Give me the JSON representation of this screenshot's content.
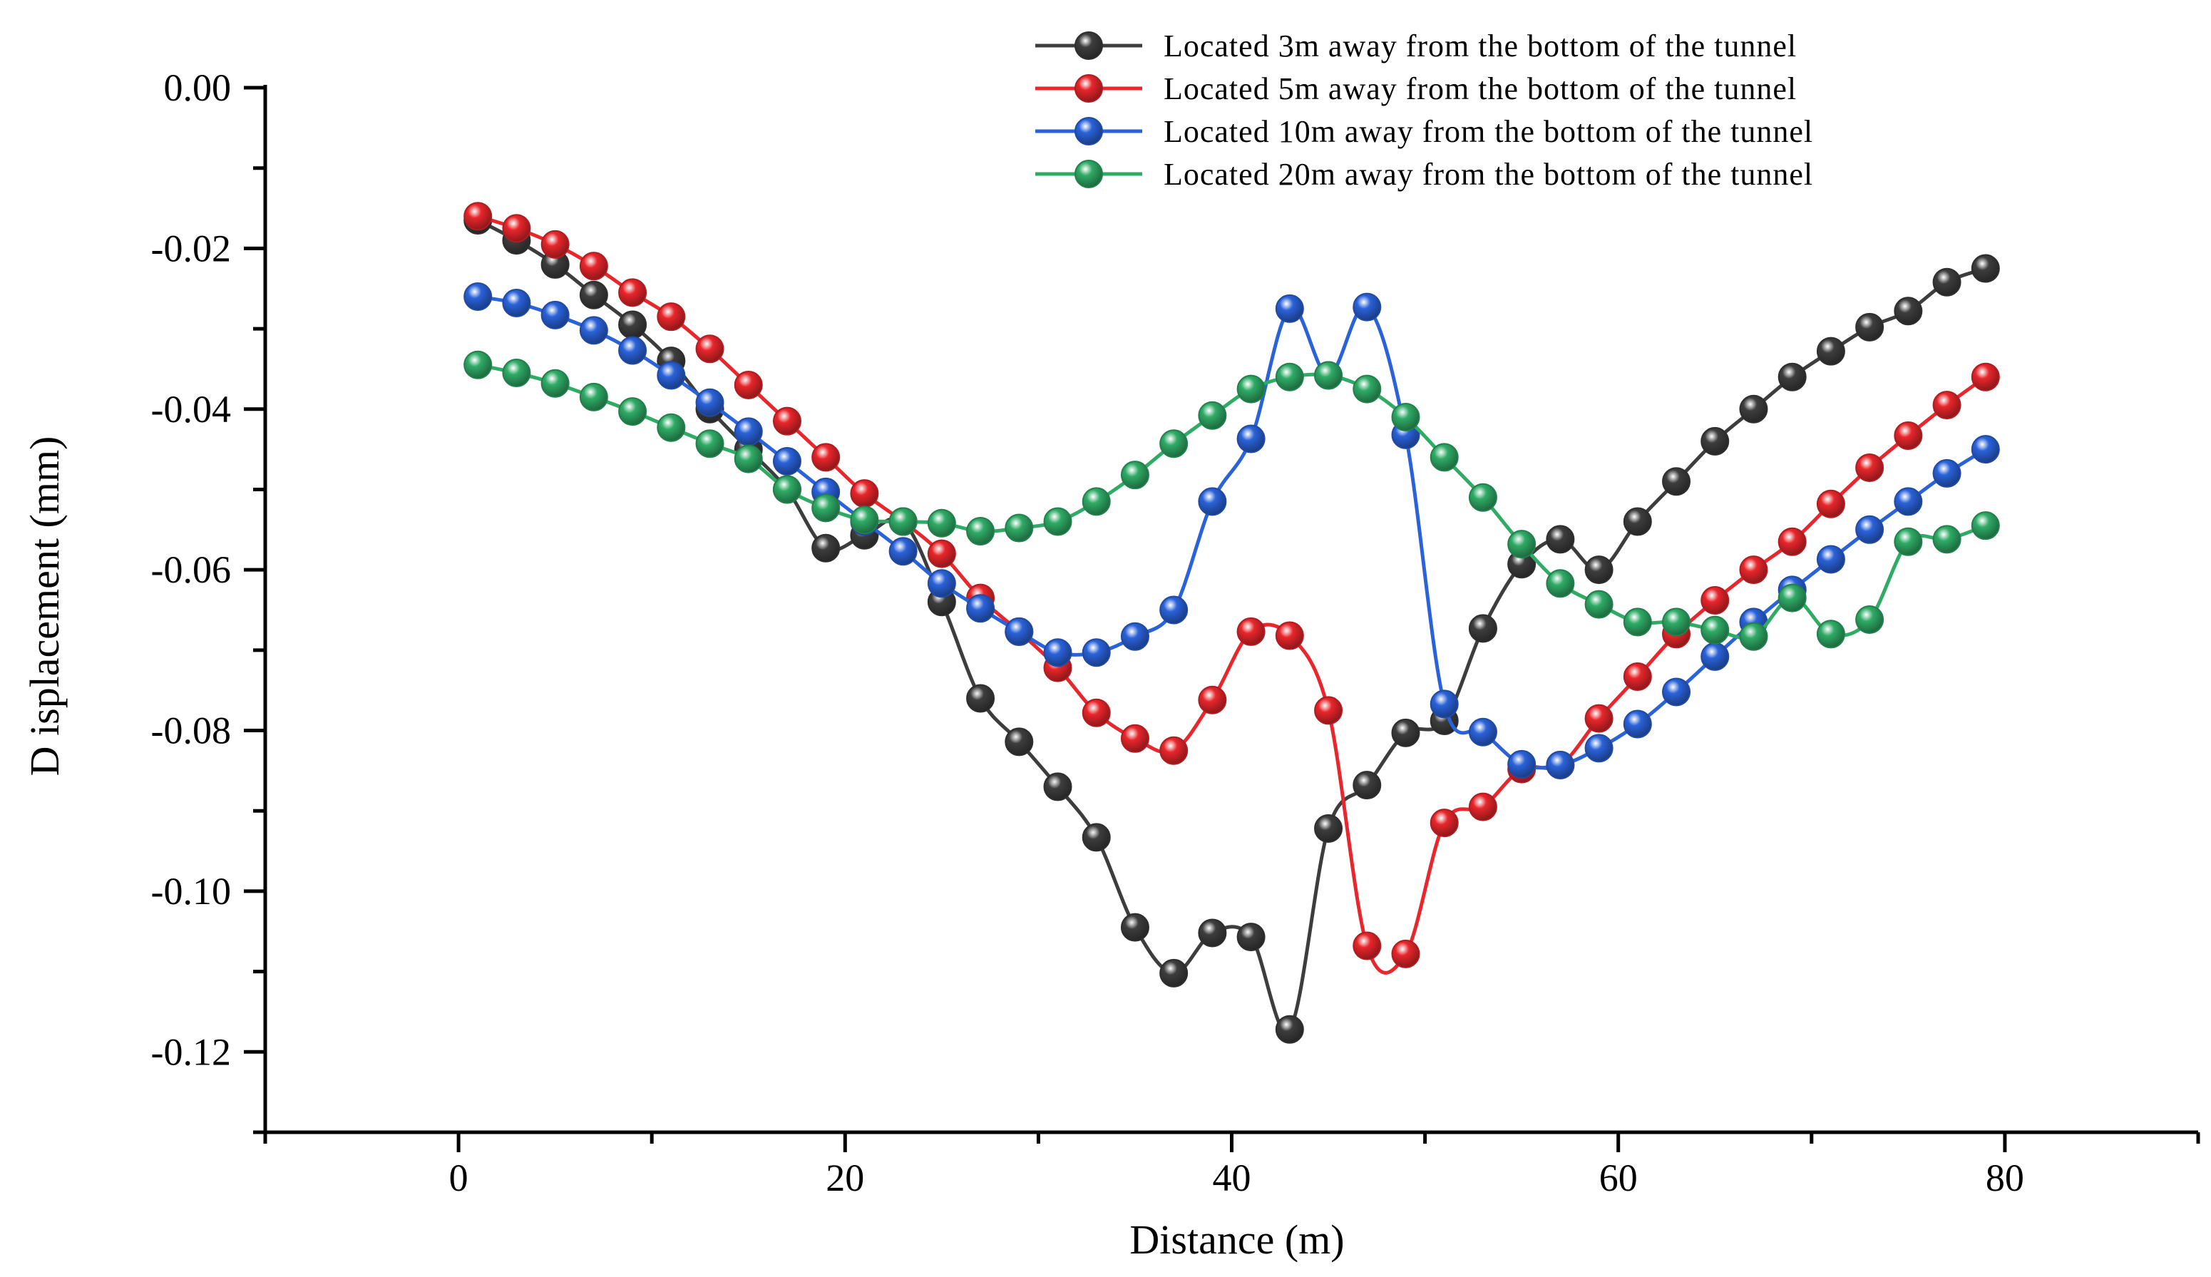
{
  "chart_data": {
    "type": "line",
    "title": "",
    "xlabel": "Distance (m)",
    "ylabel": "D isplacement (mm)",
    "xlim": [
      -10,
      90
    ],
    "ylim": [
      -0.13,
      0.0
    ],
    "xticks": [
      0,
      20,
      40,
      60,
      80
    ],
    "xtick_labels": [
      "0",
      "20",
      "40",
      "60",
      "80"
    ],
    "yticks": [
      0.0,
      -0.02,
      -0.04,
      -0.06,
      -0.08,
      -0.1,
      -0.12
    ],
    "ytick_labels": [
      "0.00",
      "-0.02",
      "-0.04",
      "-0.06",
      "-0.08",
      "-0.10",
      "-0.12"
    ],
    "grid": false,
    "legend_position": "top-right",
    "x": [
      1,
      3,
      5,
      7,
      9,
      11,
      13,
      15,
      17,
      19,
      21,
      23,
      25,
      27,
      29,
      31,
      33,
      35,
      37,
      39,
      41,
      43,
      45,
      47,
      49,
      51,
      53,
      55,
      57,
      59,
      61,
      63,
      65,
      67,
      69,
      71,
      73,
      75,
      77,
      79
    ],
    "series": [
      {
        "name": "Located 3m away from the bottom of the tunnel",
        "color": "#3d3d3d",
        "values": [
          -0.0165,
          -0.019,
          -0.022,
          -0.0258,
          -0.0295,
          -0.034,
          -0.04,
          -0.045,
          -0.05,
          -0.0573,
          -0.0557,
          -0.054,
          -0.064,
          -0.076,
          -0.0814,
          -0.087,
          -0.0933,
          -0.1045,
          -0.1102,
          -0.1052,
          -0.1057,
          -0.1172,
          -0.0922,
          -0.0868,
          -0.0803,
          -0.0788,
          -0.0673,
          -0.0593,
          -0.0562,
          -0.06,
          -0.054,
          -0.049,
          -0.044,
          -0.04,
          -0.036,
          -0.0328,
          -0.0298,
          -0.0278,
          -0.0242,
          -0.0225
        ]
      },
      {
        "name": "Located 5m away from the bottom of the tunnel",
        "color": "#e8262b",
        "values": [
          -0.016,
          -0.0175,
          -0.0195,
          -0.0222,
          -0.0255,
          -0.0285,
          -0.0325,
          -0.037,
          -0.0415,
          -0.046,
          -0.0505,
          -0.054,
          -0.058,
          -0.0635,
          -0.0677,
          -0.0722,
          -0.0778,
          -0.081,
          -0.0825,
          -0.0762,
          -0.0677,
          -0.0682,
          -0.0775,
          -0.1068,
          -0.1078,
          -0.0915,
          -0.0895,
          -0.0848,
          -0.0843,
          -0.0785,
          -0.0733,
          -0.068,
          -0.0638,
          -0.06,
          -0.0565,
          -0.0518,
          -0.0473,
          -0.0433,
          -0.0395,
          -0.036
        ]
      },
      {
        "name": "Located 10m away from the bottom of the tunnel",
        "color": "#2a62d9",
        "values": [
          -0.026,
          -0.0268,
          -0.0283,
          -0.0302,
          -0.0327,
          -0.0358,
          -0.0392,
          -0.0428,
          -0.0465,
          -0.0503,
          -0.054,
          -0.0577,
          -0.0617,
          -0.0648,
          -0.0677,
          -0.0703,
          -0.0703,
          -0.0683,
          -0.065,
          -0.0515,
          -0.0437,
          -0.0275,
          -0.0358,
          -0.0273,
          -0.0432,
          -0.0767,
          -0.0802,
          -0.0842,
          -0.0843,
          -0.0822,
          -0.0792,
          -0.0752,
          -0.0708,
          -0.0665,
          -0.0625,
          -0.0587,
          -0.055,
          -0.0515,
          -0.048,
          -0.045
        ]
      },
      {
        "name": "Located 20m away from the bottom of the tunnel",
        "color": "#2fab66",
        "values": [
          -0.0345,
          -0.0355,
          -0.0368,
          -0.0385,
          -0.0403,
          -0.0423,
          -0.0443,
          -0.0462,
          -0.05,
          -0.0523,
          -0.0538,
          -0.054,
          -0.0542,
          -0.0552,
          -0.0548,
          -0.054,
          -0.0515,
          -0.0482,
          -0.0443,
          -0.0408,
          -0.0375,
          -0.036,
          -0.0358,
          -0.0375,
          -0.041,
          -0.046,
          -0.051,
          -0.0568,
          -0.0617,
          -0.0643,
          -0.0665,
          -0.0665,
          -0.0675,
          -0.0683,
          -0.0635,
          -0.068,
          -0.0662,
          -0.0565,
          -0.0562,
          -0.0545
        ]
      }
    ]
  }
}
